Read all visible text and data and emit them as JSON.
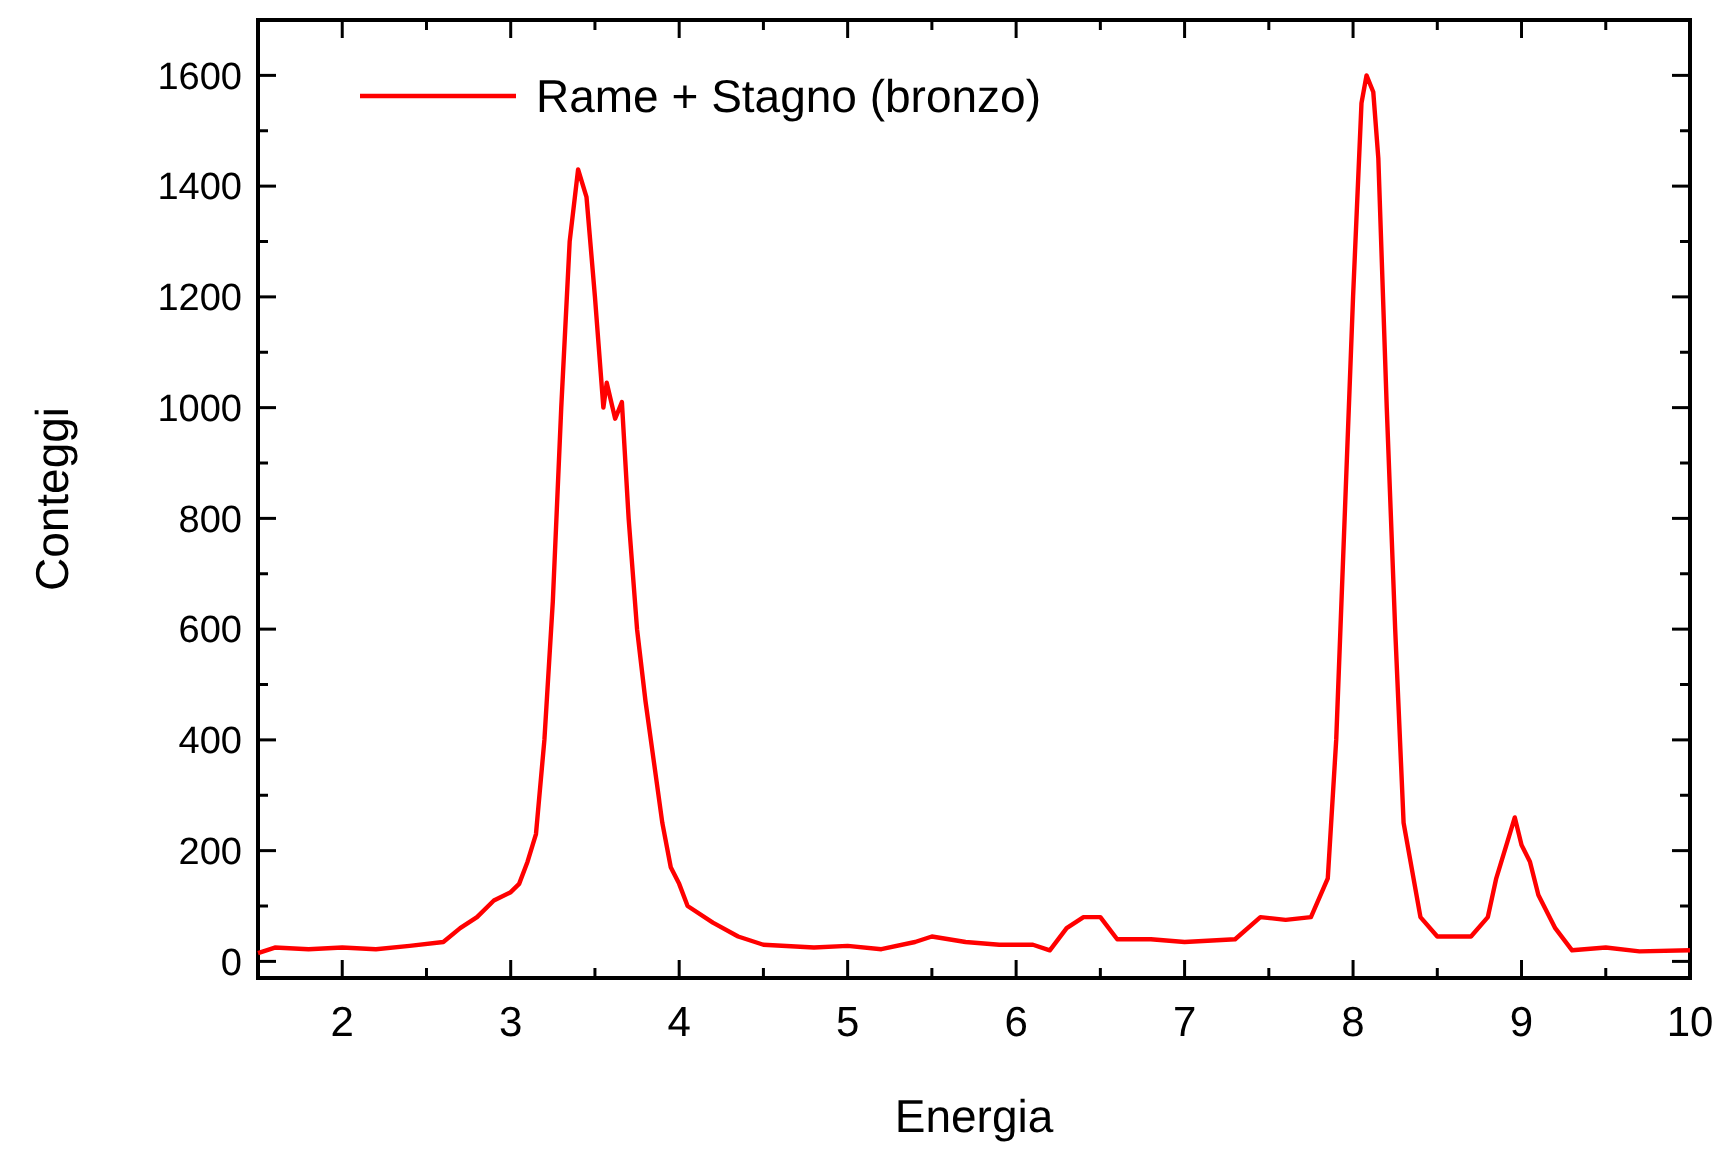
{
  "chart_data": {
    "type": "line",
    "xlabel": "Energia",
    "ylabel": "Conteggi",
    "xlim": [
      1.5,
      10
    ],
    "ylim": [
      -30,
      1700
    ],
    "xticks": [
      {
        "value": 1.5,
        "label": null
      },
      2,
      {
        "value": 2.5,
        "label": null
      },
      3,
      {
        "value": 3.5,
        "label": null
      },
      4,
      {
        "value": 4.5,
        "label": null
      },
      5,
      {
        "value": 5.5,
        "label": null
      },
      6,
      {
        "value": 6.5,
        "label": null
      },
      7,
      {
        "value": 7.5,
        "label": null
      },
      8,
      {
        "value": 8.5,
        "label": null
      },
      9,
      {
        "value": 9.5,
        "label": null
      },
      10
    ],
    "yticks": [
      0,
      {
        "value": 100,
        "label": null
      },
      200,
      {
        "value": 300,
        "label": null
      },
      400,
      {
        "value": 500,
        "label": null
      },
      600,
      {
        "value": 700,
        "label": null
      },
      800,
      {
        "value": 900,
        "label": null
      },
      1000,
      {
        "value": 1100,
        "label": null
      },
      1200,
      {
        "value": 1300,
        "label": null
      },
      1400,
      {
        "value": 1500,
        "label": null
      },
      1600
    ],
    "legend": "top left",
    "grid": false,
    "marker": "none",
    "line_style": "solid",
    "series": [
      {
        "name": "Rame + Stagno (bronzo)",
        "color": "#ff0000",
        "x": [
          1.5,
          1.6,
          1.8,
          2.0,
          2.2,
          2.4,
          2.6,
          2.7,
          2.8,
          2.9,
          3.0,
          3.05,
          3.1,
          3.15,
          3.2,
          3.25,
          3.3,
          3.35,
          3.4,
          3.45,
          3.5,
          3.55,
          3.57,
          3.62,
          3.66,
          3.7,
          3.75,
          3.8,
          3.85,
          3.9,
          3.95,
          4.0,
          4.05,
          4.2,
          4.35,
          4.5,
          4.8,
          5.0,
          5.2,
          5.4,
          5.5,
          5.7,
          5.9,
          6.1,
          6.2,
          6.3,
          6.4,
          6.5,
          6.6,
          6.8,
          7.0,
          7.3,
          7.45,
          7.6,
          7.75,
          7.85,
          7.9,
          7.95,
          8.0,
          8.05,
          8.08,
          8.12,
          8.15,
          8.2,
          8.25,
          8.3,
          8.4,
          8.5,
          8.7,
          8.8,
          8.85,
          8.92,
          8.96,
          9.0,
          9.05,
          9.1,
          9.2,
          9.3,
          9.5,
          9.7,
          10
        ],
        "values": [
          15,
          25,
          22,
          25,
          22,
          28,
          35,
          60,
          80,
          110,
          125,
          140,
          180,
          230,
          400,
          650,
          1000,
          1300,
          1430,
          1380,
          1200,
          1000,
          1045,
          980,
          1010,
          800,
          600,
          470,
          360,
          250,
          170,
          140,
          100,
          70,
          45,
          30,
          25,
          28,
          22,
          35,
          45,
          35,
          30,
          30,
          20,
          60,
          80,
          80,
          40,
          40,
          35,
          40,
          80,
          75,
          80,
          150,
          400,
          800,
          1200,
          1550,
          1600,
          1570,
          1450,
          1000,
          600,
          250,
          80,
          45,
          45,
          80,
          150,
          220,
          260,
          210,
          180,
          120,
          60,
          20,
          25,
          18,
          20
        ]
      }
    ]
  }
}
